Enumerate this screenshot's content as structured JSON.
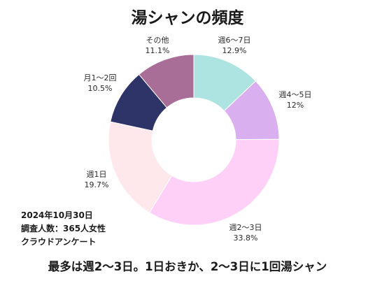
{
  "header": {
    "title": "湯シャンの頻度"
  },
  "chart_data": {
    "type": "pie",
    "style": "donut",
    "start": "top, clockwise",
    "slices": [
      {
        "label": "週6～7日",
        "value": 12.9,
        "pct_label": "12.9%",
        "color": "#ade4e2"
      },
      {
        "label": "週4～5日",
        "value": 12.0,
        "pct_label": "12%",
        "color": "#d9aff0"
      },
      {
        "label": "週2～3日",
        "value": 33.8,
        "pct_label": "33.8%",
        "color": "#ffd0f7"
      },
      {
        "label": "週1日",
        "value": 19.7,
        "pct_label": "19.7%",
        "color": "#ffe8ec"
      },
      {
        "label": "月1～2回",
        "value": 10.5,
        "pct_label": "10.5%",
        "color": "#2e3368"
      },
      {
        "label": "その他",
        "value": 11.1,
        "pct_label": "11.1%",
        "color": "#a86e98"
      }
    ]
  },
  "meta": {
    "date": "2024年10月30日",
    "respondents": "調査人数：365人女性",
    "source": "クラウドアンケート"
  },
  "footer": {
    "text": "最多は週2～3日。1日おきか、2～3日に1回湯シャン"
  }
}
